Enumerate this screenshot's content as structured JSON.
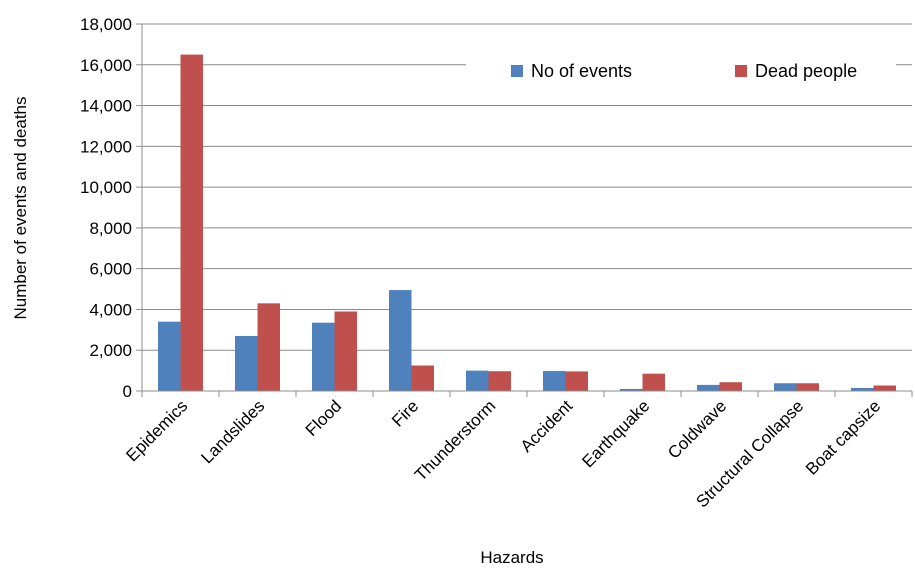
{
  "chart_data": {
    "type": "bar",
    "title": "",
    "xlabel": "Hazards",
    "ylabel": "Number of events and deaths",
    "ylim": [
      0,
      18000
    ],
    "yticks": [
      0,
      2000,
      4000,
      6000,
      8000,
      10000,
      12000,
      14000,
      16000,
      18000
    ],
    "ytick_labels": [
      "0",
      "2,000",
      "4,000",
      "6,000",
      "8,000",
      "10,000",
      "12,000",
      "14,000",
      "16,000",
      "18,000"
    ],
    "grid": true,
    "legend_position": "top-right",
    "categories": [
      "Epidemics",
      "Landslides",
      "Flood",
      "Fire",
      "Thunderstorm",
      "Accident",
      "Earthquake",
      "Coldwave",
      "Structural Collapse",
      "Boat capsize"
    ],
    "series": [
      {
        "name": "No of events",
        "color": "#4F81BD",
        "values": [
          3400,
          2700,
          3350,
          4950,
          1000,
          980,
          100,
          300,
          380,
          150
        ]
      },
      {
        "name": "Dead people",
        "color": "#C0504D",
        "values": [
          16500,
          4300,
          3900,
          1250,
          970,
          960,
          850,
          430,
          380,
          270
        ]
      }
    ]
  }
}
